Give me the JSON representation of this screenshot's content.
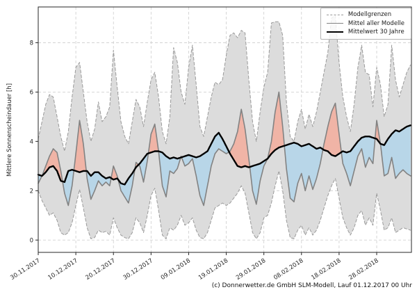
{
  "footer": {
    "caption": "(c) Donnerwetter.de GmbH SLM-Modell, Lauf 01.12.2017 00 Uhr"
  },
  "chart_data": {
    "type": "line",
    "title": "",
    "xlabel": "",
    "ylabel": "Mittlere Sonnenscheindauer [h]",
    "ylim": [
      -0.5,
      9.45
    ],
    "yticks": [
      0,
      2,
      4,
      6,
      8
    ],
    "grid": true,
    "legend_position": "upper right",
    "legend": [
      "Modellgrenzen",
      "Mittel aller Modelle",
      "Mittelwert 30 Jahre"
    ],
    "x_start_date": "30.11.2017",
    "x_days_total": 99,
    "xtick_days": [
      0,
      10,
      20,
      30,
      40,
      50,
      60,
      70,
      80,
      90
    ],
    "xtick_labels": [
      "30.11.2017",
      "10.12.2017",
      "20.12.2017",
      "30.12.2017",
      "09.01.2018",
      "19.01.2018",
      "29.01.2018",
      "08.02.2018",
      "18.02.2018",
      "28.02.2018"
    ],
    "series": [
      {
        "name": "Modellgrenzen (Minimum)",
        "role": "band_min",
        "style": "dashed-gray",
        "values": [
          2.0,
          1.6,
          1.3,
          1.0,
          1.1,
          0.8,
          0.3,
          0.2,
          0.3,
          0.7,
          1.4,
          2.05,
          1.3,
          0.5,
          0.05,
          0.1,
          0.4,
          0.3,
          0.35,
          0.2,
          0.9,
          0.5,
          0.2,
          0.1,
          0.05,
          0.3,
          0.9,
          0.7,
          0.3,
          1.0,
          1.8,
          2.1,
          1.2,
          0.2,
          0.05,
          0.5,
          0.4,
          0.6,
          1.0,
          0.6,
          0.7,
          0.9,
          0.4,
          0.1,
          0.05,
          0.3,
          0.8,
          1.3,
          1.4,
          1.5,
          1.4,
          1.5,
          1.7,
          1.9,
          2.2,
          1.9,
          1.1,
          0.3,
          0.05,
          0.3,
          0.9,
          1.0,
          1.5,
          2.2,
          2.8,
          2.0,
          0.8,
          0.1,
          0.05,
          0.4,
          0.6,
          0.2,
          0.5,
          0.2,
          0.4,
          0.8,
          1.3,
          1.8,
          2.2,
          2.5,
          1.7,
          0.9,
          0.5,
          0.2,
          0.5,
          1.0,
          1.2,
          0.6,
          0.9,
          0.6,
          1.9,
          1.2,
          0.4,
          0.5,
          0.9,
          0.3,
          0.4,
          0.5,
          0.45,
          0.4
        ]
      },
      {
        "name": "Modellgrenzen (Maximum)",
        "role": "band_max",
        "style": "dashed-gray",
        "values": [
          4.1,
          4.8,
          5.5,
          5.9,
          5.8,
          5.0,
          4.2,
          3.6,
          4.4,
          5.8,
          7.0,
          7.2,
          6.0,
          4.8,
          4.0,
          4.5,
          5.6,
          4.8,
          5.0,
          5.4,
          7.7,
          6.2,
          4.8,
          4.2,
          3.9,
          4.8,
          5.7,
          5.4,
          4.6,
          5.6,
          6.5,
          6.8,
          5.8,
          4.4,
          3.9,
          5.0,
          7.8,
          7.2,
          6.0,
          5.5,
          7.0,
          7.9,
          6.3,
          4.6,
          4.2,
          5.0,
          5.8,
          6.4,
          6.3,
          6.5,
          7.5,
          8.3,
          8.4,
          8.2,
          8.5,
          8.4,
          6.5,
          4.8,
          4.0,
          5.2,
          6.2,
          6.8,
          8.8,
          8.85,
          8.85,
          8.3,
          5.6,
          4.2,
          4.0,
          4.8,
          5.3,
          4.5,
          5.1,
          4.6,
          5.2,
          6.0,
          6.8,
          7.6,
          9.0,
          9.1,
          7.2,
          5.8,
          5.0,
          4.4,
          5.5,
          7.0,
          7.9,
          6.8,
          6.7,
          5.4,
          7.0,
          6.3,
          5.0,
          5.5,
          7.9,
          6.5,
          5.8,
          6.3,
          6.8,
          7.1
        ]
      },
      {
        "name": "Mittel aller Modelle",
        "role": "model_mean",
        "style": "gray-line",
        "values": [
          2.3,
          2.6,
          3.0,
          3.4,
          3.7,
          3.55,
          2.8,
          1.9,
          1.4,
          2.2,
          3.5,
          4.85,
          3.9,
          2.5,
          1.65,
          2.0,
          2.4,
          2.2,
          2.35,
          2.2,
          3.0,
          2.6,
          2.0,
          1.75,
          1.5,
          2.2,
          3.15,
          3.0,
          2.35,
          3.2,
          4.3,
          4.7,
          3.6,
          2.2,
          1.75,
          2.8,
          2.7,
          2.9,
          3.4,
          3.0,
          3.1,
          3.3,
          2.6,
          1.8,
          1.4,
          2.2,
          3.0,
          3.5,
          3.7,
          3.6,
          3.5,
          3.6,
          3.9,
          4.4,
          5.3,
          4.5,
          3.3,
          2.0,
          1.45,
          2.4,
          3.0,
          3.3,
          4.0,
          5.2,
          6.0,
          4.6,
          2.9,
          1.7,
          1.55,
          2.3,
          2.7,
          2.0,
          2.6,
          2.05,
          2.5,
          3.1,
          3.9,
          4.6,
          5.2,
          5.55,
          4.3,
          3.1,
          2.7,
          2.2,
          2.8,
          3.4,
          3.7,
          2.95,
          3.35,
          3.1,
          4.85,
          3.9,
          2.6,
          2.7,
          3.35,
          2.5,
          2.7,
          2.85,
          2.7,
          2.6
        ]
      },
      {
        "name": "Mittelwert 30 Jahre",
        "role": "climate_mean",
        "style": "black-line",
        "values": [
          2.65,
          2.6,
          2.75,
          2.95,
          3.0,
          2.8,
          2.4,
          2.35,
          2.8,
          2.85,
          2.8,
          2.75,
          2.8,
          2.8,
          2.6,
          2.75,
          2.75,
          2.6,
          2.5,
          2.55,
          2.45,
          2.5,
          2.3,
          2.25,
          2.5,
          2.7,
          2.95,
          3.1,
          3.3,
          3.5,
          3.55,
          3.6,
          3.6,
          3.55,
          3.4,
          3.3,
          3.35,
          3.3,
          3.35,
          3.4,
          3.45,
          3.4,
          3.35,
          3.4,
          3.5,
          3.6,
          3.9,
          4.2,
          4.35,
          4.1,
          3.8,
          3.5,
          3.25,
          3.0,
          2.95,
          3.0,
          2.95,
          3.0,
          3.05,
          3.1,
          3.2,
          3.3,
          3.5,
          3.65,
          3.75,
          3.8,
          3.85,
          3.9,
          3.95,
          3.9,
          3.8,
          3.85,
          3.9,
          3.8,
          3.7,
          3.75,
          3.65,
          3.6,
          3.45,
          3.4,
          3.5,
          3.6,
          3.55,
          3.6,
          3.8,
          4.0,
          4.15,
          4.2,
          4.2,
          4.15,
          4.1,
          3.9,
          3.85,
          4.1,
          4.3,
          4.45,
          4.4,
          4.5,
          4.6,
          4.65
        ]
      }
    ],
    "colors": {
      "band_fill": "#dcdcdc",
      "band_edge": "#999999",
      "above_fill": "#f0b4a6",
      "below_fill": "#b8d6e8",
      "model_mean": "#828282",
      "climate_mean": "#000000",
      "grid": "#cccccc",
      "spine": "#262626",
      "tick_text": "#262626"
    }
  }
}
